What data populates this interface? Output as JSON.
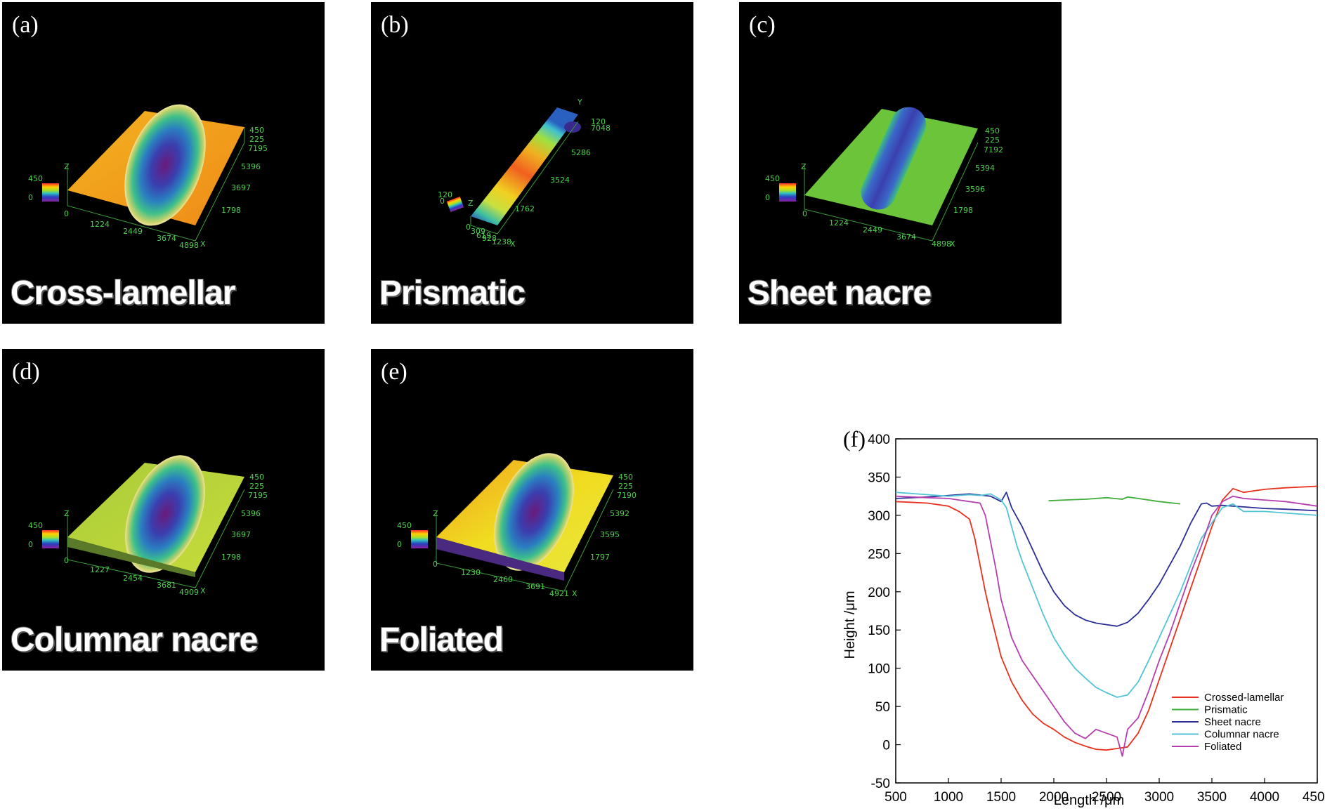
{
  "panels": [
    {
      "id": "a",
      "label": "(a)",
      "title": "Cross-lamellar",
      "surface": "orange",
      "pit": "oval",
      "xticks": [
        "0",
        "1224",
        "2449",
        "3674",
        "4898"
      ],
      "yticks": [
        "1798",
        "3697",
        "5396",
        "7195"
      ],
      "zticks": [
        "450",
        "225"
      ],
      "legend": [
        "450",
        "0"
      ],
      "axes": [
        "X",
        "Z"
      ]
    },
    {
      "id": "b",
      "label": "(b)",
      "title": "Prismatic",
      "surface": "strip",
      "xticks": [
        "0",
        "309",
        "619",
        "928",
        "1238"
      ],
      "yticks": [
        "1762",
        "3524",
        "5286",
        "7048"
      ],
      "zticks": [
        "120"
      ],
      "legend": [
        "120",
        "0"
      ],
      "axes": [
        "X",
        "Y",
        "Z"
      ]
    },
    {
      "id": "c",
      "label": "(c)",
      "title": "Sheet nacre",
      "surface": "green",
      "pit": "capsule",
      "xticks": [
        "0",
        "1224",
        "2449",
        "3674",
        "4898"
      ],
      "yticks": [
        "1798",
        "3596",
        "5394",
        "7192"
      ],
      "zticks": [
        "450",
        "225"
      ],
      "legend": [
        "450",
        "0"
      ],
      "axes": [
        "X",
        "Z"
      ]
    },
    {
      "id": "d",
      "label": "(d)",
      "title": "Columnar nacre",
      "surface": "yellowgreen",
      "pit": "oval",
      "xticks": [
        "0",
        "1227",
        "2454",
        "3681",
        "4909"
      ],
      "yticks": [
        "1798",
        "3697",
        "5396",
        "7195"
      ],
      "zticks": [
        "450",
        "225"
      ],
      "legend": [
        "450",
        "0"
      ],
      "axes": [
        "X",
        "Z"
      ]
    },
    {
      "id": "e",
      "label": "(e)",
      "title": "Foliated",
      "surface": "yellow",
      "pit": "oval",
      "xticks": [
        "0",
        "1230",
        "2460",
        "3691",
        "4921"
      ],
      "yticks": [
        "1797",
        "3595",
        "5392",
        "7190"
      ],
      "zticks": [
        "450",
        "225"
      ],
      "legend": [
        "450",
        "0"
      ],
      "axes": [
        "X",
        "Z"
      ]
    }
  ],
  "chart_data": {
    "type": "line",
    "panel_label": "(f)",
    "xlabel": "Length /μm",
    "ylabel": "Height /μm",
    "xlim": [
      500,
      4500
    ],
    "ylim": [
      -50,
      400
    ],
    "xticks": [
      500,
      1000,
      1500,
      2000,
      2500,
      3000,
      3500,
      4000,
      4500
    ],
    "yticks": [
      -50,
      0,
      50,
      100,
      150,
      200,
      250,
      300,
      350,
      400
    ],
    "legend_position": "bottom-right",
    "series": [
      {
        "name": "Crossed-lamellar",
        "color": "#e8301c",
        "x": [
          500,
          800,
          1000,
          1100,
          1200,
          1250,
          1300,
          1350,
          1400,
          1500,
          1600,
          1700,
          1800,
          1900,
          2000,
          2100,
          2200,
          2300,
          2400,
          2500,
          2600,
          2700,
          2800,
          2900,
          3000,
          3100,
          3200,
          3300,
          3400,
          3500,
          3600,
          3700,
          3800,
          4000,
          4200,
          4500
        ],
        "y": [
          318,
          316,
          312,
          305,
          295,
          270,
          235,
          200,
          170,
          115,
          82,
          58,
          40,
          28,
          20,
          10,
          3,
          -2,
          -6,
          -7,
          -5,
          -3,
          15,
          45,
          85,
          125,
          165,
          205,
          245,
          285,
          320,
          335,
          330,
          334,
          336,
          338
        ]
      },
      {
        "name": "Prismatic",
        "color": "#3fae3a",
        "x": [
          1950,
          2100,
          2300,
          2500,
          2650,
          2700,
          2800,
          3000,
          3200
        ],
        "y": [
          319,
          320,
          321,
          323,
          321,
          324,
          322,
          318,
          315
        ]
      },
      {
        "name": "Sheet nacre",
        "color": "#2b2e94",
        "x": [
          500,
          800,
          1000,
          1200,
          1400,
          1500,
          1550,
          1600,
          1700,
          1800,
          1900,
          2000,
          2100,
          2200,
          2300,
          2400,
          2500,
          2600,
          2700,
          2800,
          2900,
          3000,
          3100,
          3200,
          3300,
          3400,
          3450,
          3500,
          3600,
          3800,
          4000,
          4200,
          4500
        ],
        "y": [
          322,
          324,
          326,
          328,
          325,
          318,
          330,
          310,
          285,
          255,
          225,
          200,
          182,
          170,
          163,
          159,
          157,
          155,
          160,
          172,
          190,
          210,
          235,
          260,
          290,
          315,
          316,
          312,
          313,
          311,
          309,
          308,
          306
        ]
      },
      {
        "name": "Columnar nacre",
        "color": "#53c4d6",
        "x": [
          500,
          800,
          1000,
          1200,
          1300,
          1400,
          1500,
          1550,
          1600,
          1650,
          1700,
          1800,
          1900,
          2000,
          2100,
          2200,
          2300,
          2400,
          2500,
          2600,
          2700,
          2800,
          2900,
          3000,
          3100,
          3200,
          3300,
          3400,
          3500,
          3600,
          3700,
          3800,
          4000,
          4200,
          4500
        ],
        "y": [
          330,
          327,
          325,
          327,
          326,
          328,
          320,
          310,
          285,
          260,
          240,
          205,
          170,
          140,
          118,
          100,
          87,
          75,
          68,
          62,
          65,
          82,
          110,
          140,
          170,
          200,
          235,
          270,
          290,
          310,
          315,
          305,
          305,
          303,
          300
        ]
      },
      {
        "name": "Foliated",
        "color": "#b53fae",
        "x": [
          500,
          800,
          1000,
          1100,
          1200,
          1300,
          1350,
          1400,
          1450,
          1500,
          1600,
          1700,
          1800,
          1900,
          2000,
          2100,
          2200,
          2300,
          2400,
          2500,
          2600,
          2650,
          2700,
          2800,
          2900,
          3000,
          3100,
          3200,
          3300,
          3400,
          3500,
          3600,
          3700,
          3800,
          4000,
          4200,
          4500
        ],
        "y": [
          325,
          323,
          322,
          320,
          318,
          316,
          300,
          265,
          230,
          190,
          140,
          110,
          90,
          70,
          50,
          30,
          15,
          8,
          20,
          15,
          10,
          -15,
          20,
          35,
          70,
          110,
          145,
          185,
          225,
          260,
          300,
          318,
          325,
          322,
          320,
          318,
          312
        ]
      }
    ]
  }
}
